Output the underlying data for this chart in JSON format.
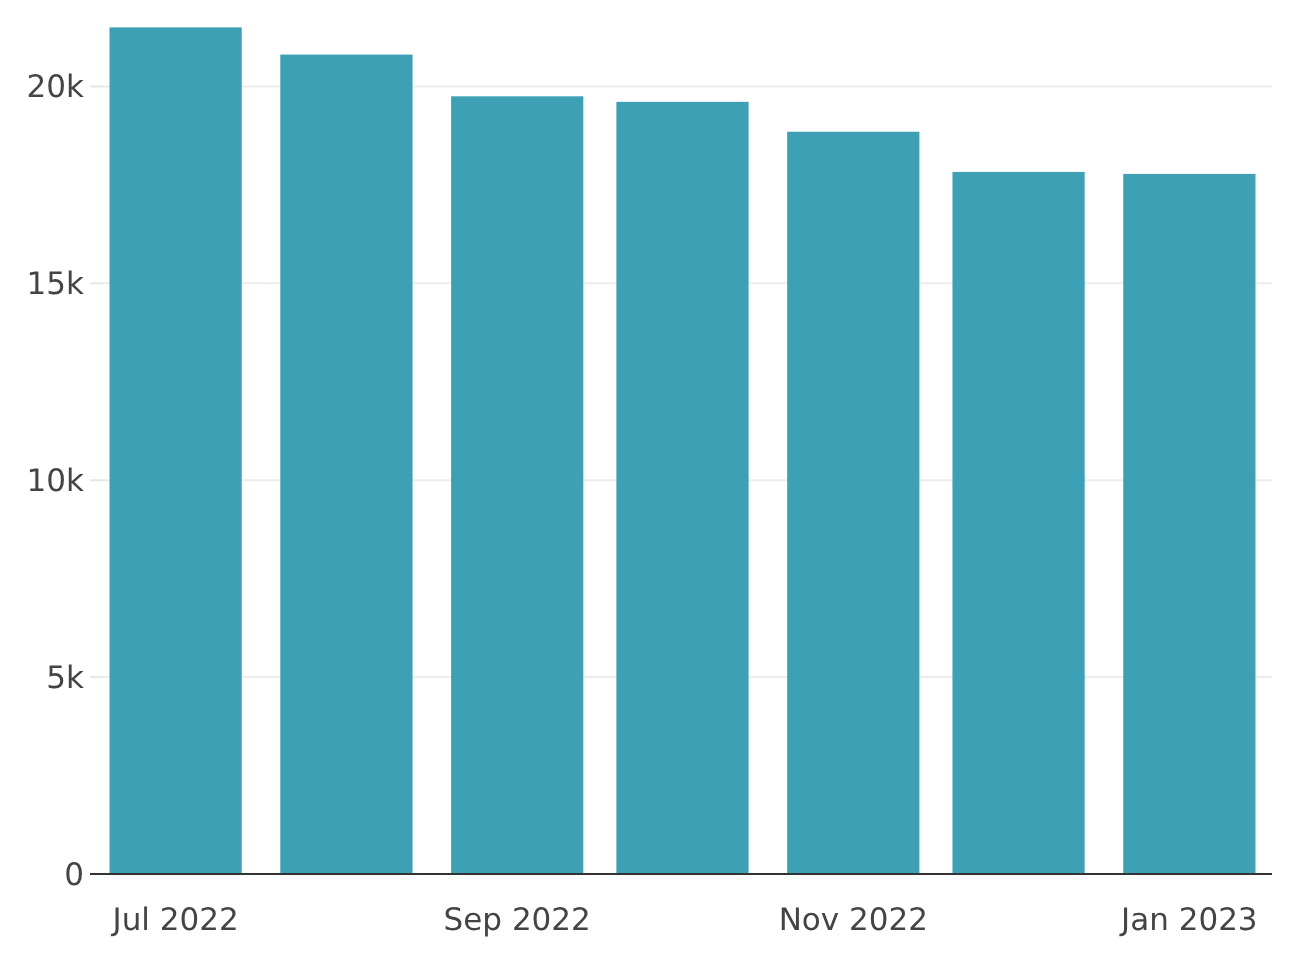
{
  "chart_data": {
    "type": "bar",
    "x": [
      "2022-07",
      "2022-08",
      "2022-09",
      "2022-10",
      "2022-11",
      "2022-12",
      "2023-01"
    ],
    "values": [
      21500,
      20810,
      19750,
      19610,
      18850,
      17830,
      17780
    ],
    "color": "#3ea0b5",
    "xlim": [
      "2022-06-18",
      "2023-01-16"
    ],
    "xticks": [
      {
        "value": "2022-07",
        "label": "Jul 2022"
      },
      {
        "value": "2022-09",
        "label": "Sep 2022"
      },
      {
        "value": "2022-11",
        "label": "Nov 2022"
      },
      {
        "value": "2023-01",
        "label": "Jan 2023"
      }
    ],
    "ylim": [
      0,
      21500
    ],
    "yticks": [
      0,
      {
        "value": 5000,
        "label": "5k"
      },
      {
        "value": 10000,
        "label": "10k"
      },
      {
        "value": 15000,
        "label": "15k"
      },
      {
        "value": 20000,
        "label": "20k"
      }
    ],
    "grid": "y"
  }
}
